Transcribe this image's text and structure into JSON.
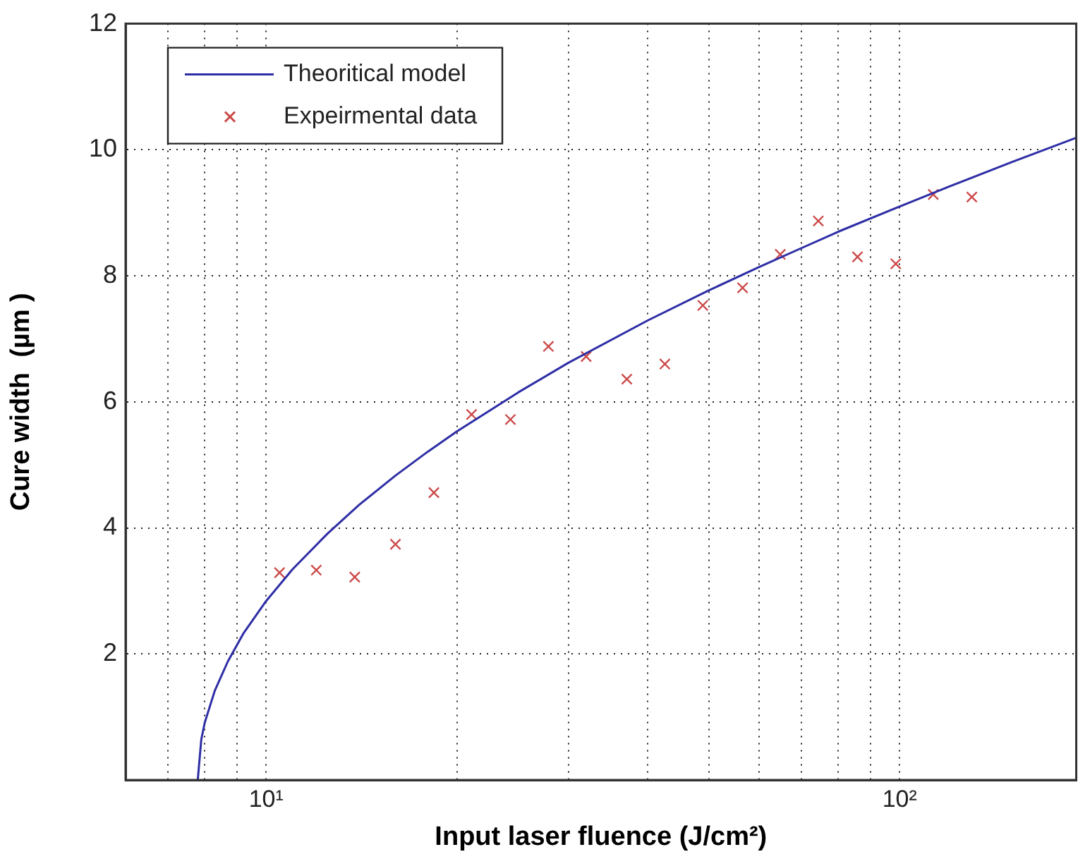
{
  "chart_data": {
    "type": "scatter",
    "xlabel": "Input laser fluence (J/cm²)",
    "ylabel": "Cure width  (µm )",
    "log": "x",
    "xlim": [
      6,
      190
    ],
    "xticks": [
      {
        "value": 6,
        "label": null
      },
      {
        "value": 7,
        "label": null
      },
      {
        "value": 8,
        "label": null
      },
      {
        "value": 9,
        "label": null
      },
      {
        "value": 10,
        "label": "10¹"
      },
      {
        "value": 20,
        "label": null
      },
      {
        "value": 30,
        "label": null
      },
      {
        "value": 40,
        "label": null
      },
      {
        "value": 50,
        "label": null
      },
      {
        "value": 60,
        "label": null
      },
      {
        "value": 70,
        "label": null
      },
      {
        "value": 80,
        "label": null
      },
      {
        "value": 90,
        "label": null
      },
      {
        "value": 100,
        "label": "10²"
      }
    ],
    "ylim": [
      0,
      12
    ],
    "yticks": [
      {
        "value": 0,
        "label": null
      },
      2,
      4,
      6,
      8,
      10,
      12
    ],
    "grid": true,
    "legend": "top left",
    "series": [
      {
        "name": "Theoritical model",
        "type": "line",
        "marker": "none",
        "line_style": "solid",
        "color": "#2e2ea6",
        "x": [
          7.8,
          7.9,
          8.0,
          8.3,
          8.7,
          9.2,
          10,
          11,
          12.5,
          14,
          16,
          18,
          20,
          25,
          30,
          40,
          50,
          60,
          70,
          80,
          100,
          120,
          150,
          190
        ],
        "values": [
          0,
          0.64,
          0.91,
          1.42,
          1.88,
          2.32,
          2.84,
          3.34,
          3.91,
          4.36,
          4.83,
          5.21,
          5.53,
          6.15,
          6.62,
          7.29,
          7.77,
          8.14,
          8.44,
          8.7,
          9.1,
          9.42,
          9.8,
          10.19
        ]
      },
      {
        "name": "Expeirmental data",
        "type": "scatter",
        "marker": "cross",
        "color": "#cc4a4a",
        "x": [
          10.5,
          12.0,
          13.8,
          16.0,
          18.4,
          21.1,
          24.3,
          27.9,
          32.0,
          37.1,
          42.6,
          48.9,
          56.5,
          64.8,
          74.4,
          85.8,
          98.6,
          113,
          130
        ],
        "values": [
          3.29,
          3.33,
          3.22,
          3.74,
          4.56,
          5.8,
          5.72,
          6.88,
          6.72,
          6.36,
          6.6,
          7.53,
          7.81,
          8.34,
          8.87,
          8.3,
          8.19,
          9.29,
          9.25
        ]
      }
    ]
  }
}
